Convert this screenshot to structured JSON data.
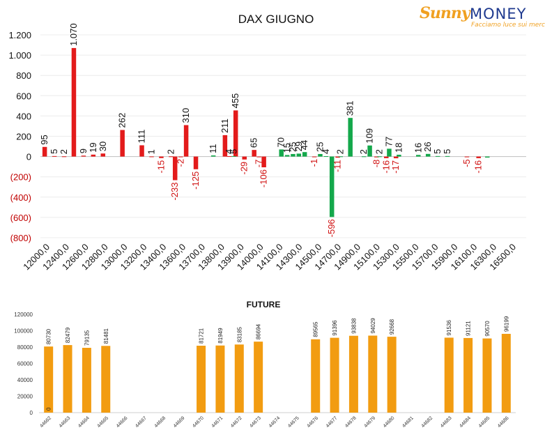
{
  "logo": {
    "brand_a": "Sunny",
    "brand_b": "MONEY",
    "tagline": "Facciamo luce sui mercati"
  },
  "chart_data": [
    {
      "type": "bar",
      "title": "DAX GIUGNO",
      "ylim": [
        -800,
        1200
      ],
      "yticks": [
        1200,
        1000,
        800,
        600,
        400,
        200,
        0,
        -200,
        -400,
        -600,
        -800
      ],
      "ytick_labels": [
        "1.200",
        "1.000",
        "800",
        "600",
        "400",
        "200",
        "0",
        "(200)",
        "(400)",
        "(600)",
        "(800)"
      ],
      "categories": [
        "12000,0",
        "12400,0",
        "12600,0",
        "12800,0",
        "13000,0",
        "13200,0",
        "13400,0",
        "13600,0",
        "13700,0",
        "13800,0",
        "13900,0",
        "14000,0",
        "14100,0",
        "14300,0",
        "14500,0",
        "14700,0",
        "14900,0",
        "15100,0",
        "15300,0",
        "15500,0",
        "15700,0",
        "15900,0",
        "16100,0",
        "16300,0",
        "16500,0"
      ],
      "colors": {
        "red": "#e31b1b",
        "green": "#14a84b"
      },
      "grid": true,
      "series": [
        {
          "color": "red",
          "points": [
            {
              "x": 0.22,
              "v": 95,
              "label": "95"
            },
            {
              "x": 0.72,
              "v": 5,
              "label": "5"
            },
            {
              "x": 1.22,
              "v": 2,
              "label": "2"
            },
            {
              "x": 1.72,
              "v": 1070,
              "label": "1.070"
            },
            {
              "x": 2.22,
              "v": 9,
              "label": "9"
            },
            {
              "x": 2.72,
              "v": 19,
              "label": "19"
            },
            {
              "x": 3.22,
              "v": 30,
              "label": "30"
            },
            {
              "x": 4.22,
              "v": 262,
              "label": "262"
            },
            {
              "x": 5.22,
              "v": 111,
              "label": "111"
            },
            {
              "x": 5.72,
              "v": 1,
              "label": "1"
            },
            {
              "x": 6.22,
              "v": -15,
              "label": "-15"
            },
            {
              "x": 6.72,
              "v": 2,
              "label": "2"
            },
            {
              "x": 6.93,
              "v": -233,
              "label": "-233"
            },
            {
              "x": 7.22,
              "v": -2,
              "label": "-2"
            },
            {
              "x": 7.5,
              "v": 310,
              "label": "310"
            },
            {
              "x": 8.0,
              "v": -125,
              "label": "-125"
            },
            {
              "x": 9.5,
              "v": 211,
              "label": "211"
            },
            {
              "x": 9.72,
              "v": 4,
              "label": "4"
            },
            {
              "x": 10.05,
              "v": 455,
              "label": "455"
            },
            {
              "x": 10.5,
              "v": -29,
              "label": "-29"
            },
            {
              "x": 11.0,
              "v": 65,
              "label": "65"
            },
            {
              "x": 11.25,
              "v": -7,
              "label": "-7"
            },
            {
              "x": 11.5,
              "v": -106,
              "label": "-106"
            },
            {
              "x": 14.1,
              "v": -1,
              "label": "-1"
            },
            {
              "x": 15.3,
              "v": -11,
              "label": "-11"
            },
            {
              "x": 17.3,
              "v": -8,
              "label": "-8"
            },
            {
              "x": 17.8,
              "v": -16,
              "label": "-16"
            },
            {
              "x": 18.3,
              "v": -17,
              "label": "-17"
            },
            {
              "x": 21.95,
              "v": -5,
              "label": "-5"
            },
            {
              "x": 22.55,
              "v": -16,
              "label": "-16"
            }
          ]
        },
        {
          "color": "green",
          "points": [
            {
              "x": 8.9,
              "v": 11,
              "label": "11"
            },
            {
              "x": 9.95,
              "v": 5,
              "label": "5"
            },
            {
              "x": 12.4,
              "v": 70,
              "label": "70"
            },
            {
              "x": 12.7,
              "v": 15,
              "label": "15"
            },
            {
              "x": 13.0,
              "v": 25,
              "label": "25"
            },
            {
              "x": 13.3,
              "v": 29,
              "label": "29"
            },
            {
              "x": 13.6,
              "v": 44,
              "label": "44"
            },
            {
              "x": 14.4,
              "v": 25,
              "label": "25"
            },
            {
              "x": 14.7,
              "v": 4,
              "label": "4"
            },
            {
              "x": 15.0,
              "v": -596,
              "label": "-596"
            },
            {
              "x": 15.45,
              "v": 2,
              "label": "2"
            },
            {
              "x": 15.95,
              "v": 381,
              "label": "381"
            },
            {
              "x": 16.65,
              "v": 2,
              "label": "2"
            },
            {
              "x": 16.95,
              "v": 109,
              "label": "109"
            },
            {
              "x": 17.45,
              "v": 2,
              "label": "2"
            },
            {
              "x": 17.95,
              "v": 77,
              "label": "77"
            },
            {
              "x": 18.45,
              "v": 18,
              "label": "18"
            },
            {
              "x": 19.45,
              "v": 16,
              "label": "16"
            },
            {
              "x": 19.95,
              "v": 26,
              "label": "26"
            },
            {
              "x": 20.45,
              "v": 5,
              "label": "5"
            },
            {
              "x": 20.95,
              "v": 5,
              "label": "5"
            },
            {
              "x": 23.0,
              "v": -10,
              "label": ""
            }
          ]
        }
      ]
    },
    {
      "type": "bar",
      "title": "FUTURE",
      "ylim": [
        0,
        120000
      ],
      "yticks": [
        0,
        20000,
        40000,
        60000,
        80000,
        100000,
        120000
      ],
      "color": "#f29c11",
      "categories": [
        "44662",
        "44663",
        "44664",
        "44665",
        "44666",
        "44667",
        "44668",
        "44669",
        "44670",
        "44671",
        "44672",
        "44673",
        "44674",
        "44675",
        "44676",
        "44677",
        "44678",
        "44679",
        "44680",
        "44681",
        "44682",
        "44683",
        "44684",
        "44685",
        "44686"
      ],
      "values": [
        80730,
        82479,
        79135,
        81481,
        null,
        null,
        null,
        null,
        81721,
        81949,
        83185,
        86694,
        null,
        null,
        89565,
        91396,
        93838,
        94029,
        92668,
        null,
        null,
        91536,
        91121,
        90570,
        96199
      ],
      "labels": [
        "80730",
        "82479",
        "79135",
        "81481",
        "",
        "",
        "",
        "",
        "81721",
        "81949",
        "83185",
        "86694",
        "",
        "",
        "89565",
        "91396",
        "93838",
        "94029",
        "92668",
        "",
        "",
        "91536",
        "91121",
        "90570",
        "96199"
      ],
      "inner_label": "0"
    }
  ]
}
